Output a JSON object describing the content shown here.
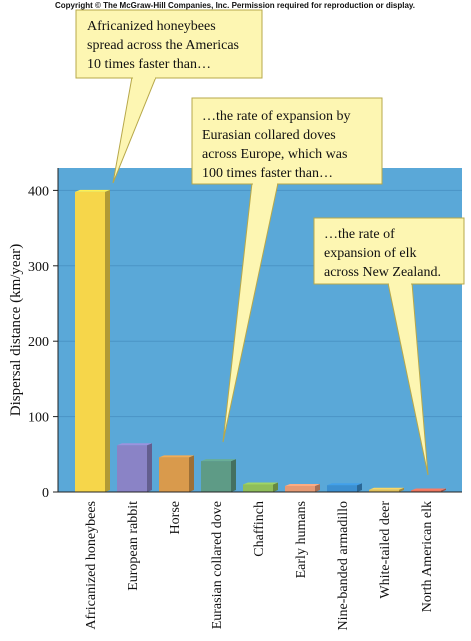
{
  "copyright": "Copyright © The McGraw-Hill Companies, Inc. Permission required for reproduction or display.",
  "colors": {
    "plot_background": "#5aa8d8",
    "callout_fill": "#fdf6b2",
    "callout_stroke": "#b7a84a"
  },
  "chart_data": {
    "type": "bar",
    "ylabel": "Dispersal distance (km/year)",
    "xlabel": "",
    "ylim": [
      0,
      460
    ],
    "yticks": [
      0,
      100,
      200,
      300,
      400
    ],
    "categories": [
      "Africanized honeybees",
      "European rabbit",
      "Horse",
      "Eurasian collared dove",
      "Chaffinch",
      "Early humans",
      "Nine-banded armadillo",
      "White-tailed deer",
      "North American elk"
    ],
    "values": [
      398,
      62,
      46,
      41,
      10,
      8,
      9,
      3,
      2
    ],
    "bar_colors": [
      "#f6d64a",
      "#8a83c6",
      "#d99a4c",
      "#5e9b86",
      "#8fbe5a",
      "#e79a74",
      "#3b8fd1",
      "#e0c05a",
      "#e0705a"
    ],
    "annotations": [
      {
        "lines": [
          "Africanized honeybees",
          "spread across the Americas",
          "10 times faster than…"
        ],
        "target_category": "Africanized honeybees"
      },
      {
        "lines": [
          "…the rate of expansion by",
          "Eurasian collared doves",
          "across Europe, which was",
          "100 times faster than…"
        ],
        "target_category": "Eurasian collared dove"
      },
      {
        "lines": [
          "…the rate of",
          "expansion of elk",
          "across New Zealand."
        ],
        "target_category": "North American elk"
      }
    ]
  }
}
